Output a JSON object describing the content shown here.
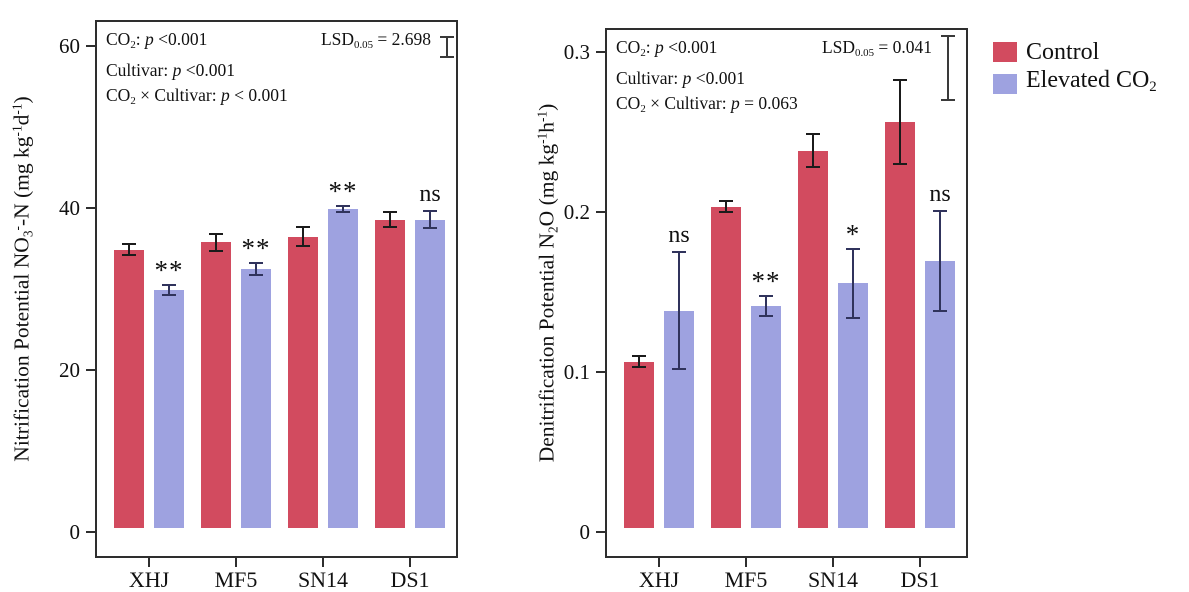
{
  "legend": {
    "items": [
      {
        "name": "control",
        "color": "#D24B5F",
        "label_parts": [
          {
            "t": "Control"
          }
        ]
      },
      {
        "name": "elevated-co2",
        "color": "#9EA2E0",
        "label_parts": [
          {
            "t": "Elevated CO"
          },
          {
            "t": "2",
            "s": "sub"
          }
        ]
      }
    ]
  },
  "chart_data": [
    {
      "id": "nitrification",
      "type": "bar",
      "ylabel_parts": [
        {
          "t": "Nitrification Potential  NO"
        },
        {
          "t": "3",
          "s": "sub"
        },
        {
          "t": "-",
          "s": "sup"
        },
        {
          "t": "-N (mg kg"
        },
        {
          "t": "-1",
          "s": "sup"
        },
        {
          "t": "d"
        },
        {
          "t": "-1",
          "s": "sup"
        },
        {
          "t": ")"
        }
      ],
      "categories": [
        "XHJ",
        "MF5",
        "SN14",
        "DS1"
      ],
      "series": [
        {
          "name": "Control",
          "color": "#D24B5F",
          "error_color": "#1b1b1b",
          "values": [
            34.4,
            35.3,
            36.0,
            38.1
          ],
          "errors": [
            0.8,
            1.2,
            1.3,
            1.1
          ]
        },
        {
          "name": "Elevated CO2",
          "color": "#9EA2E0",
          "error_color": "#30335c",
          "values": [
            29.4,
            32.0,
            39.4,
            38.1
          ],
          "errors": [
            0.8,
            0.9,
            0.5,
            1.2
          ]
        }
      ],
      "significance": [
        "**",
        "**",
        "**",
        "ns"
      ],
      "ylim": [
        0,
        63
      ],
      "yticks": [
        {
          "v": 0,
          "label": "0"
        },
        {
          "v": 20,
          "label": "20"
        },
        {
          "v": 40,
          "label": "40"
        },
        {
          "v": 60,
          "label": "60"
        }
      ],
      "grid": false,
      "stats_lines": [
        [
          {
            "t": "CO"
          },
          {
            "t": "2",
            "s": "sub"
          },
          {
            "t": ": "
          },
          {
            "t": "p",
            "s": "i"
          },
          {
            "t": " <0.001"
          }
        ],
        [
          {
            "t": "Cultivar: "
          },
          {
            "t": "p",
            "s": "i"
          },
          {
            "t": " <0.001"
          }
        ],
        [
          {
            "t": "CO"
          },
          {
            "t": "2",
            "s": "sub"
          },
          {
            "t": " × Cultivar: "
          },
          {
            "t": "p",
            "s": "i"
          },
          {
            "t": " < 0.001"
          }
        ]
      ],
      "lsd_label_parts": [
        {
          "t": "LSD"
        },
        {
          "t": "0.05",
          "s": "sub"
        },
        {
          "t": " = 2.698"
        }
      ],
      "lsd_value": 2.698
    },
    {
      "id": "denitrification",
      "type": "bar",
      "ylabel_parts": [
        {
          "t": "Denitrification Potential  N"
        },
        {
          "t": "2",
          "s": "sub"
        },
        {
          "t": "O (mg kg"
        },
        {
          "t": "-1",
          "s": "sup"
        },
        {
          "t": "h"
        },
        {
          "t": "-1",
          "s": "sup"
        },
        {
          "t": ")"
        }
      ],
      "categories": [
        "XHJ",
        "MF5",
        "SN14",
        "DS1"
      ],
      "series": [
        {
          "name": "Control",
          "color": "#D24B5F",
          "error_color": "#1b1b1b",
          "values": [
            0.104,
            0.201,
            0.236,
            0.254
          ],
          "errors": [
            0.004,
            0.004,
            0.011,
            0.027
          ]
        },
        {
          "name": "Elevated CO2",
          "color": "#9EA2E0",
          "error_color": "#30335c",
          "values": [
            0.136,
            0.139,
            0.153,
            0.167
          ],
          "errors": [
            0.037,
            0.007,
            0.022,
            0.032
          ]
        }
      ],
      "significance": [
        "ns",
        "**",
        "*",
        "ns"
      ],
      "ylim": [
        0,
        0.314
      ],
      "yticks": [
        {
          "v": 0,
          "label": "0"
        },
        {
          "v": 0.1,
          "label": "0.1"
        },
        {
          "v": 0.2,
          "label": "0.2"
        },
        {
          "v": 0.3,
          "label": "0.3"
        }
      ],
      "grid": false,
      "stats_lines": [
        [
          {
            "t": "CO"
          },
          {
            "t": "2",
            "s": "sub"
          },
          {
            "t": ": "
          },
          {
            "t": "p",
            "s": "i"
          },
          {
            "t": " <0.001"
          }
        ],
        [
          {
            "t": "Cultivar: "
          },
          {
            "t": "p",
            "s": "i"
          },
          {
            "t": " <0.001"
          }
        ],
        [
          {
            "t": "CO"
          },
          {
            "t": "2",
            "s": "sub"
          },
          {
            "t": " × Cultivar: "
          },
          {
            "t": "p",
            "s": "i"
          },
          {
            "t": " = 0.063"
          }
        ]
      ],
      "lsd_label_parts": [
        {
          "t": "LSD"
        },
        {
          "t": "0.05",
          "s": "sub"
        },
        {
          "t": " = 0.041"
        }
      ],
      "lsd_value": 0.041
    }
  ]
}
